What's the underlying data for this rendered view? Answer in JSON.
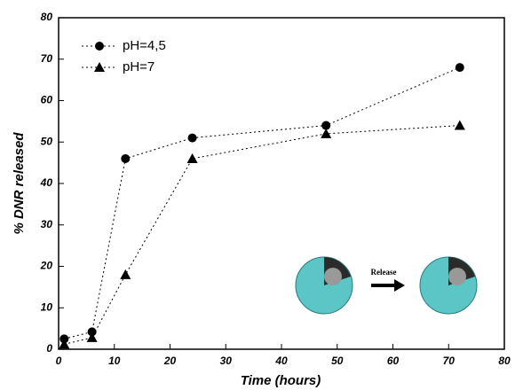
{
  "chart_data": {
    "type": "line",
    "xlabel": "Time (hours)",
    "ylabel": "% DNR released",
    "x": [
      1,
      6,
      12,
      24,
      48,
      72
    ],
    "series": [
      {
        "name": "pH=4,5",
        "color": "#000000",
        "marker": "circle",
        "values": [
          2.5,
          4.2,
          46,
          51,
          54,
          68
        ]
      },
      {
        "name": "pH=7",
        "color": "#000000",
        "marker": "triangle",
        "values": [
          1.2,
          2.8,
          18,
          46,
          52,
          54
        ]
      }
    ],
    "xlim": [
      0,
      80
    ],
    "xticks": [
      0,
      10,
      20,
      30,
      40,
      50,
      60,
      70,
      80
    ],
    "ylim": [
      0,
      80
    ],
    "yticks": [
      0,
      10,
      20,
      30,
      40,
      50,
      60,
      70,
      80
    ],
    "legend": "upper-left",
    "annotation": "Release"
  }
}
